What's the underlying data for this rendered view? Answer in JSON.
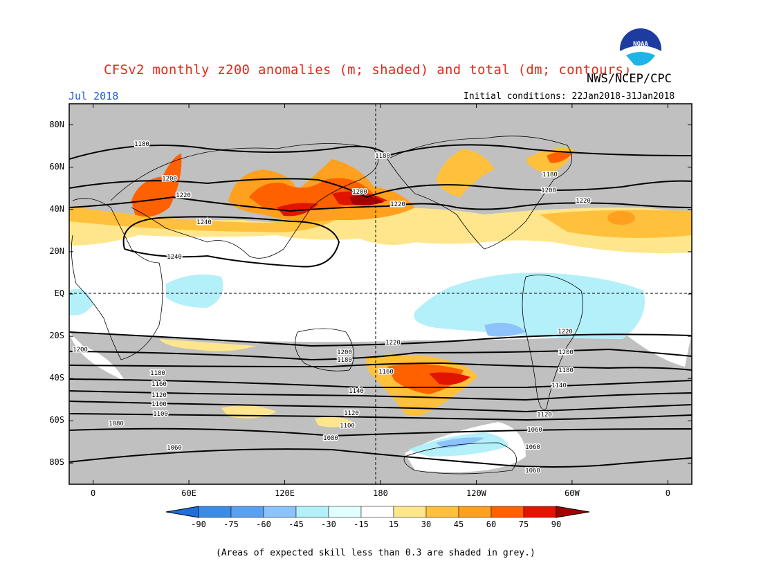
{
  "header": {
    "title": "CFSv2 monthly z200 anomalies (m; shaded) and total (dm; contours)",
    "agency": "NWS/NCEP/CPC",
    "month": "Jul 2018",
    "initial_conditions": "Initial conditions: 22Jan2018-31Jan2018",
    "logo_text": "NOAA"
  },
  "map": {
    "lat_labels": [
      "80N",
      "60N",
      "40N",
      "20N",
      "EQ",
      "20S",
      "40S",
      "60S",
      "80S"
    ],
    "lon_labels": [
      "0",
      "60E",
      "120E",
      "180",
      "120W",
      "60W",
      "0"
    ],
    "contour_labels": [
      "1180",
      "1200",
      "1220",
      "1240",
      "1240",
      "1180",
      "1200",
      "1220",
      "1180",
      "1200",
      "1220",
      "1220",
      "1200",
      "1200",
      "1180",
      "1180",
      "1160",
      "1160",
      "1140",
      "1140",
      "1120",
      "1100",
      "1080",
      "1060",
      "1180",
      "1200",
      "1220",
      "1180",
      "1160",
      "1140",
      "1120",
      "1120",
      "1100",
      "1100",
      "1080",
      "1060",
      "1060",
      "1060"
    ]
  },
  "colorbar": {
    "labels": [
      "-90",
      "-75",
      "-60",
      "-45",
      "-30",
      "-15",
      "15",
      "30",
      "45",
      "60",
      "75",
      "90"
    ],
    "colors": [
      "#1e6edc",
      "#3c8ce6",
      "#5aa0f0",
      "#8cc3fa",
      "#b4f0fa",
      "#e1ffff",
      "#ffffff",
      "#ffe68c",
      "#ffc03c",
      "#ffa01e",
      "#ff6000",
      "#e11400",
      "#a50000"
    ]
  },
  "footer": {
    "skill_note": "(Areas of expected skill less than 0.3 are shaded in grey.)"
  },
  "colors": {
    "grey_shading": "#c0c0c0",
    "title_red": "#e8281e",
    "month_blue": "#1e5adc"
  }
}
